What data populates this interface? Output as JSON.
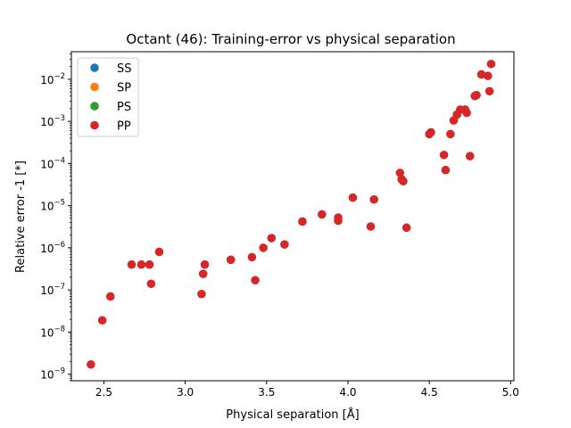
{
  "chart_data": {
    "type": "scatter",
    "title": "Octant (46): Training-error vs physical separation",
    "xlabel": "Physical separation [Å]",
    "ylabel": "Relative error -1 [*]",
    "xlim": [
      2.3,
      5.02
    ],
    "ylim": [
      7e-10,
      0.045
    ],
    "yscale": "log",
    "grid": false,
    "legend_position": "top-left",
    "x_ticks": [
      2.5,
      3.0,
      3.5,
      4.0,
      4.5,
      5.0
    ],
    "x_tick_labels": [
      "2.5",
      "3.0",
      "3.5",
      "4.0",
      "4.5",
      "5.0"
    ],
    "y_ticks": [
      -9,
      -8,
      -7,
      -6,
      -5,
      -4,
      -3,
      -2
    ],
    "y_tick_labels": [
      "10",
      "10",
      "10",
      "10",
      "10",
      "10",
      "10",
      "10"
    ],
    "y_tick_exponents": [
      "−9",
      "−8",
      "−7",
      "−6",
      "−5",
      "−4",
      "−3",
      "−2"
    ],
    "series": [
      {
        "name": "SS",
        "color": "#1f77b4",
        "points": []
      },
      {
        "name": "SP",
        "color": "#ff7f0e",
        "points": []
      },
      {
        "name": "PS",
        "color": "#2ca02c",
        "points": []
      },
      {
        "name": "PP",
        "color": "#d62728",
        "points": [
          [
            2.42,
            1.7e-09
          ],
          [
            2.49,
            1.9e-08
          ],
          [
            2.54,
            7e-08
          ],
          [
            2.67,
            4e-07
          ],
          [
            2.73,
            4e-07
          ],
          [
            2.78,
            4e-07
          ],
          [
            2.79,
            1.4e-07
          ],
          [
            2.84,
            8e-07
          ],
          [
            3.1,
            8e-08
          ],
          [
            3.11,
            2.4e-07
          ],
          [
            3.12,
            4e-07
          ],
          [
            3.28,
            5.2e-07
          ],
          [
            3.41,
            6e-07
          ],
          [
            3.43,
            1.7e-07
          ],
          [
            3.48,
            1e-06
          ],
          [
            3.53,
            1.7e-06
          ],
          [
            3.61,
            1.2e-06
          ],
          [
            3.72,
            4.2e-06
          ],
          [
            3.84,
            6.2e-06
          ],
          [
            3.94,
            4.4e-06
          ],
          [
            3.94,
            5.2e-06
          ],
          [
            4.03,
            1.55e-05
          ],
          [
            4.14,
            3.2e-06
          ],
          [
            4.16,
            1.4e-05
          ],
          [
            4.32,
            6e-05
          ],
          [
            4.33,
            4.2e-05
          ],
          [
            4.34,
            3.8e-05
          ],
          [
            4.36,
            3e-06
          ],
          [
            4.5,
            0.0005
          ],
          [
            4.51,
            0.00055
          ],
          [
            4.59,
            0.00016
          ],
          [
            4.6,
            7e-05
          ],
          [
            4.63,
            0.0005
          ],
          [
            4.65,
            0.00105
          ],
          [
            4.67,
            0.00145
          ],
          [
            4.69,
            0.0019
          ],
          [
            4.72,
            0.0019
          ],
          [
            4.73,
            0.0016
          ],
          [
            4.75,
            0.00015
          ],
          [
            4.78,
            0.004
          ],
          [
            4.79,
            0.0042
          ],
          [
            4.82,
            0.013
          ],
          [
            4.86,
            0.012
          ],
          [
            4.87,
            0.0052
          ],
          [
            4.88,
            0.023
          ]
        ]
      }
    ]
  }
}
